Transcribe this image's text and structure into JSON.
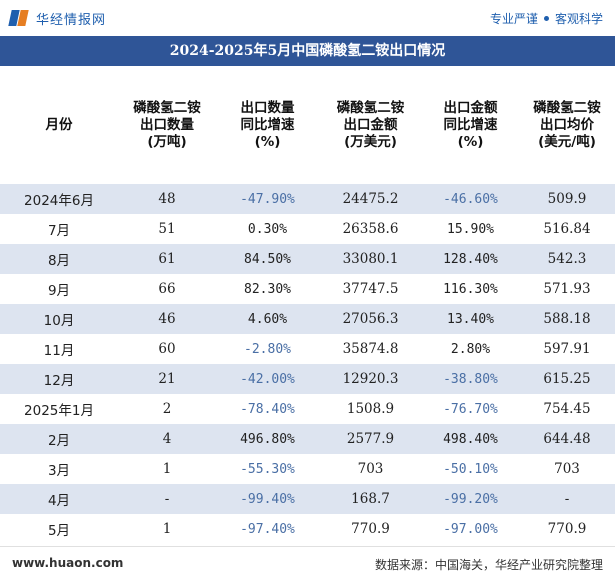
{
  "brand": {
    "logo_text": "华经情报网",
    "slogan_left": "专业严谨",
    "slogan_right": "客观科学"
  },
  "title": "2024-2025年5月中国磷酸氢二铵出口情况",
  "headers": [
    [
      "月份"
    ],
    [
      "磷酸氢二铵",
      "出口数量",
      "(万吨)"
    ],
    [
      "出口数量",
      "同比增速",
      "(%)"
    ],
    [
      "磷酸氢二铵",
      "出口金额",
      "(万美元)"
    ],
    [
      "出口金额",
      "同比增速",
      "(%)"
    ],
    [
      "磷酸氢二铵",
      "出口均价",
      "(美元/吨)"
    ]
  ],
  "rows": [
    {
      "month": "2024年6月",
      "qty": "48",
      "qty_yoy": "-47.90%",
      "amt": "24475.2",
      "amt_yoy": "-46.60%",
      "price": "509.9"
    },
    {
      "month": "7月",
      "qty": "51",
      "qty_yoy": "0.30%",
      "amt": "26358.6",
      "amt_yoy": "15.90%",
      "price": "516.84"
    },
    {
      "month": "8月",
      "qty": "61",
      "qty_yoy": "84.50%",
      "amt": "33080.1",
      "amt_yoy": "128.40%",
      "price": "542.3"
    },
    {
      "month": "9月",
      "qty": "66",
      "qty_yoy": "82.30%",
      "amt": "37747.5",
      "amt_yoy": "116.30%",
      "price": "571.93"
    },
    {
      "month": "10月",
      "qty": "46",
      "qty_yoy": "4.60%",
      "amt": "27056.3",
      "amt_yoy": "13.40%",
      "price": "588.18"
    },
    {
      "month": "11月",
      "qty": "60",
      "qty_yoy": "-2.80%",
      "amt": "35874.8",
      "amt_yoy": "2.80%",
      "price": "597.91"
    },
    {
      "month": "12月",
      "qty": "21",
      "qty_yoy": "-42.00%",
      "amt": "12920.3",
      "amt_yoy": "-38.80%",
      "price": "615.25"
    },
    {
      "month": "2025年1月",
      "qty": "2",
      "qty_yoy": "-78.40%",
      "amt": "1508.9",
      "amt_yoy": "-76.70%",
      "price": "754.45"
    },
    {
      "month": "2月",
      "qty": "4",
      "qty_yoy": "496.80%",
      "amt": "2577.9",
      "amt_yoy": "498.40%",
      "price": "644.48"
    },
    {
      "month": "3月",
      "qty": "1",
      "qty_yoy": "-55.30%",
      "amt": "703",
      "amt_yoy": "-50.10%",
      "price": "703"
    },
    {
      "month": "4月",
      "qty": "-",
      "qty_yoy": "-99.40%",
      "amt": "168.7",
      "amt_yoy": "-99.20%",
      "price": "-"
    },
    {
      "month": "5月",
      "qty": "1",
      "qty_yoy": "-97.40%",
      "amt": "770.9",
      "amt_yoy": "-97.00%",
      "price": "770.9"
    }
  ],
  "footer": {
    "site": "www.huaon.com",
    "source": "数据来源：中国海关，华经产业研究院整理"
  },
  "colors": {
    "title_bg": "#2f5597",
    "stripe": "#dde4f0",
    "negative": "#4a6fa5",
    "brand_blue": "#1f5fae",
    "brand_orange": "#e67e22"
  }
}
